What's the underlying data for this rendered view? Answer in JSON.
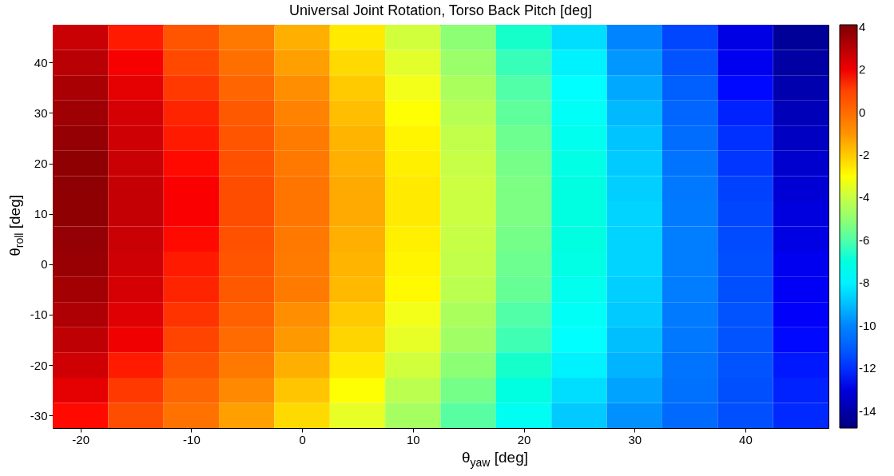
{
  "chart_data": {
    "type": "heatmap",
    "title": "Universal Joint Rotation, Torso Back Pitch [deg]",
    "xlabel": "θ$_{yaw}$ [deg]",
    "ylabel": "θ$_{roll}$ [deg]",
    "categories": [
      "-20",
      null,
      "-10",
      null,
      "0",
      null,
      "10",
      null,
      "20",
      null,
      "30",
      null,
      "40",
      null
    ],
    "y_categories": [
      null,
      "40",
      null,
      "30",
      null,
      "20",
      null,
      "10",
      null,
      "0",
      null,
      "-10",
      null,
      "-20",
      null,
      "-30"
    ],
    "cells": [
      [
        2.7,
        1.6,
        0.6,
        -0.4,
        -1.5,
        -2.6,
        -3.8,
        -5.1,
        -6.6,
        -8.4,
        -10.0,
        -11.6,
        -12.9,
        -14.3
      ],
      [
        3.0,
        1.9,
        0.9,
        -0.1,
        -1.2,
        -2.3,
        -3.5,
        -4.8,
        -6.3,
        -8.0,
        -9.7,
        -11.3,
        -12.7,
        -14.1
      ],
      [
        3.3,
        2.2,
        1.2,
        0.2,
        -0.9,
        -2.0,
        -3.2,
        -4.5,
        -6.0,
        -7.7,
        -9.4,
        -11.0,
        -12.4,
        -13.9
      ],
      [
        3.5,
        2.5,
        1.5,
        0.5,
        -0.7,
        -1.8,
        -3.0,
        -4.3,
        -5.8,
        -7.5,
        -9.1,
        -10.8,
        -12.2,
        -13.7
      ],
      [
        3.7,
        2.6,
        1.6,
        0.6,
        -0.5,
        -1.6,
        -2.8,
        -4.1,
        -5.6,
        -7.3,
        -8.9,
        -10.6,
        -12.0,
        -13.5
      ],
      [
        3.8,
        2.7,
        1.7,
        0.7,
        -0.4,
        -1.5,
        -2.7,
        -4.0,
        -5.5,
        -7.1,
        -8.8,
        -10.4,
        -11.9,
        -13.3
      ],
      [
        3.8,
        2.8,
        1.8,
        0.8,
        -0.3,
        -1.4,
        -2.6,
        -3.9,
        -5.4,
        -7.0,
        -8.7,
        -10.3,
        -11.7,
        -13.2
      ],
      [
        3.8,
        2.8,
        1.8,
        0.8,
        -0.3,
        -1.4,
        -2.6,
        -3.9,
        -5.4,
        -7.0,
        -8.6,
        -10.2,
        -11.6,
        -13.0
      ],
      [
        3.7,
        2.7,
        1.7,
        0.7,
        -0.4,
        -1.5,
        -2.7,
        -4.0,
        -5.5,
        -7.0,
        -8.6,
        -10.1,
        -11.5,
        -12.9
      ],
      [
        3.6,
        2.6,
        1.6,
        0.6,
        -0.5,
        -1.6,
        -2.8,
        -4.1,
        -5.6,
        -7.1,
        -8.6,
        -10.1,
        -11.4,
        -12.7
      ],
      [
        3.4,
        2.5,
        1.5,
        0.5,
        -0.5,
        -1.7,
        -2.9,
        -4.2,
        -5.7,
        -7.3,
        -8.7,
        -10.1,
        -11.4,
        -12.6
      ],
      [
        3.2,
        2.3,
        1.3,
        0.3,
        -0.9,
        -2.0,
        -3.2,
        -4.5,
        -6.0,
        -7.5,
        -8.8,
        -10.2,
        -11.3,
        -12.5
      ],
      [
        2.9,
        2.0,
        1.0,
        0.0,
        -1.1,
        -2.2,
        -3.4,
        -4.7,
        -6.2,
        -7.7,
        -9.0,
        -10.3,
        -11.3,
        -12.4
      ],
      [
        2.6,
        1.6,
        0.6,
        -0.4,
        -1.5,
        -2.6,
        -3.8,
        -5.1,
        -6.6,
        -8.0,
        -9.2,
        -10.4,
        -11.3,
        -12.3
      ],
      [
        2.2,
        1.2,
        0.2,
        -0.8,
        -1.9,
        -3.0,
        -4.2,
        -5.5,
        -7.0,
        -8.4,
        -9.5,
        -10.5,
        -11.4,
        -12.2
      ],
      [
        1.7,
        0.8,
        -0.2,
        -1.2,
        -2.3,
        -3.4,
        -4.6,
        -5.9,
        -7.4,
        -8.8,
        -9.8,
        -10.7,
        -11.4,
        -12.1
      ]
    ],
    "clim": [
      -14.8,
      4.1
    ],
    "cticks": [
      -14,
      -12,
      -10,
      -8,
      -6,
      -4,
      -2,
      0,
      2,
      4
    ]
  }
}
